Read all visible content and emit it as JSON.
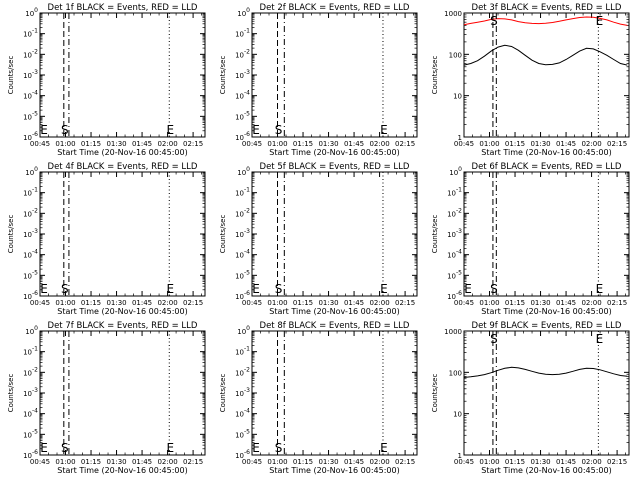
{
  "figure": {
    "panels": [
      {
        "id": "1f",
        "title": "Det 1f BLACK = Events, RED = LLD",
        "ylabel": "Counts/sec",
        "xlabel": "Start Time (20-Nov-16 00:45:00)",
        "y_ticks": [
          "10^0",
          "10^-1",
          "10^-2",
          "10^-3",
          "10^-4",
          "10^-5",
          "10^-6"
        ],
        "y_tick_values": [
          1,
          0.1,
          0.01,
          0.001,
          0.0001,
          1e-05,
          1e-06
        ],
        "x_ticks": [
          "00:45",
          "01:00",
          "01:15",
          "01:30",
          "01:45",
          "02:00",
          "02:15"
        ],
        "x_tick_minutes": [
          0,
          15,
          30,
          45,
          60,
          75,
          90
        ],
        "markers": [
          {
            "label": "E",
            "x_min": -1,
            "style": "none"
          },
          {
            "label": "S",
            "x_min": 14,
            "style": "dashed"
          },
          {
            "label": "",
            "x_min": 17,
            "style": "dashdot"
          },
          {
            "label": "E",
            "x_min": 76,
            "style": "dotted"
          }
        ],
        "series": []
      },
      {
        "id": "2f",
        "title": "Det 2f BLACK = Events, RED = LLD",
        "ylabel": "Counts/sec",
        "xlabel": "Start Time (20-Nov-16 00:45:00)",
        "y_ticks": [
          "10^0",
          "10^-1",
          "10^-2",
          "10^-3",
          "10^-4",
          "10^-5",
          "10^-6"
        ],
        "y_tick_values": [
          1,
          0.1,
          0.01,
          0.001,
          0.0001,
          1e-05,
          1e-06
        ],
        "x_ticks": [
          "00:45",
          "01:00",
          "01:15",
          "01:30",
          "01:45",
          "02:00",
          "02:15"
        ],
        "x_tick_minutes": [
          0,
          15,
          30,
          45,
          60,
          75,
          90
        ],
        "markers": [
          {
            "label": "E",
            "x_min": -1,
            "style": "none"
          },
          {
            "label": "S",
            "x_min": 15,
            "style": "dashed"
          },
          {
            "label": "",
            "x_min": 19,
            "style": "dashdot"
          },
          {
            "label": "E",
            "x_min": 77,
            "style": "dotted"
          }
        ],
        "series": []
      },
      {
        "id": "3f",
        "title": "Det 3f BLACK = Events, RED = LLD",
        "ylabel": "Counts/sec",
        "xlabel": "Start Time (20-Nov-16 00:45:00)",
        "y_ticks": [
          "1",
          "10",
          "100",
          "1000"
        ],
        "y_tick_values": [
          1,
          10,
          100,
          1000
        ],
        "x_ticks": [
          "00:45",
          "01:00",
          "01:15",
          "01:30",
          "01:45",
          "02:00",
          "02:15"
        ],
        "x_tick_minutes": [
          0,
          15,
          30,
          45,
          60,
          75,
          90
        ],
        "markers": [
          {
            "label": "S",
            "x_min": 17,
            "style": "dashed"
          },
          {
            "label": "",
            "x_min": 19,
            "style": "dashdot"
          },
          {
            "label": "E",
            "x_min": 79,
            "style": "dotted"
          }
        ],
        "series": [
          {
            "color": "#ff0000",
            "x": [
              0,
              4,
              8,
              12,
              16,
              20,
              24,
              28,
              32,
              36,
              40,
              44,
              48,
              52,
              56,
              60,
              64,
              68,
              72,
              76,
              80,
              84,
              88,
              92,
              96
            ],
            "y": [
              520,
              560,
              600,
              640,
              700,
              730,
              720,
              680,
              620,
              580,
              560,
              555,
              565,
              590,
              630,
              680,
              730,
              780,
              800,
              790,
              740,
              680,
              600,
              540,
              500
            ]
          },
          {
            "color": "#000000",
            "x": [
              0,
              4,
              8,
              12,
              16,
              20,
              24,
              28,
              32,
              36,
              40,
              44,
              48,
              52,
              56,
              60,
              64,
              68,
              72,
              76,
              80,
              84,
              88,
              92,
              96
            ],
            "y": [
              55,
              60,
              70,
              90,
              120,
              150,
              165,
              155,
              125,
              95,
              72,
              60,
              56,
              57,
              62,
              75,
              95,
              120,
              140,
              135,
              115,
              95,
              75,
              60,
              55
            ]
          }
        ]
      },
      {
        "id": "4f",
        "title": "Det 4f BLACK = Events, RED = LLD",
        "ylabel": "Counts/sec",
        "xlabel": "Start Time (20-Nov-16 00:45:00)",
        "y_ticks": [
          "10^0",
          "10^-1",
          "10^-2",
          "10^-3",
          "10^-4",
          "10^-5",
          "10^-6"
        ],
        "y_tick_values": [
          1,
          0.1,
          0.01,
          0.001,
          0.0001,
          1e-05,
          1e-06
        ],
        "x_ticks": [
          "00:45",
          "01:00",
          "01:15",
          "01:30",
          "01:45",
          "02:00",
          "02:15"
        ],
        "x_tick_minutes": [
          0,
          15,
          30,
          45,
          60,
          75,
          90
        ],
        "markers": [
          {
            "label": "E",
            "x_min": -1,
            "style": "none"
          },
          {
            "label": "S",
            "x_min": 14,
            "style": "dashed"
          },
          {
            "label": "",
            "x_min": 17,
            "style": "dashdot"
          },
          {
            "label": "E",
            "x_min": 76,
            "style": "dotted"
          }
        ],
        "series": []
      },
      {
        "id": "5f",
        "title": "Det 5f BLACK = Events, RED = LLD",
        "ylabel": "Counts/sec",
        "xlabel": "Start Time (20-Nov-16 00:45:00)",
        "y_ticks": [
          "10^0",
          "10^-1",
          "10^-2",
          "10^-3",
          "10^-4",
          "10^-5",
          "10^-6"
        ],
        "y_tick_values": [
          1,
          0.1,
          0.01,
          0.001,
          0.0001,
          1e-05,
          1e-06
        ],
        "x_ticks": [
          "00:45",
          "01:00",
          "01:15",
          "01:30",
          "01:45",
          "02:00",
          "02:15"
        ],
        "x_tick_minutes": [
          0,
          15,
          30,
          45,
          60,
          75,
          90
        ],
        "markers": [
          {
            "label": "E",
            "x_min": -1,
            "style": "none"
          },
          {
            "label": "S",
            "x_min": 15,
            "style": "dashed"
          },
          {
            "label": "",
            "x_min": 19,
            "style": "dashdot"
          },
          {
            "label": "E",
            "x_min": 77,
            "style": "dotted"
          }
        ],
        "series": []
      },
      {
        "id": "6f",
        "title": "Det 6f BLACK = Events, RED = LLD",
        "ylabel": "Counts/sec",
        "xlabel": "Start Time (20-Nov-16 00:45:00)",
        "y_ticks": [
          "10^0",
          "10^-1",
          "10^-2",
          "10^-3",
          "10^-4",
          "10^-5",
          "10^-6"
        ],
        "y_tick_values": [
          1,
          0.1,
          0.01,
          0.001,
          0.0001,
          1e-05,
          1e-06
        ],
        "x_ticks": [
          "00:45",
          "01:00",
          "01:15",
          "01:30",
          "01:45",
          "02:00",
          "02:15"
        ],
        "x_tick_minutes": [
          0,
          15,
          30,
          45,
          60,
          75,
          90
        ],
        "markers": [
          {
            "label": "E",
            "x_min": -1,
            "style": "none"
          },
          {
            "label": "S",
            "x_min": 17,
            "style": "dashed"
          },
          {
            "label": "",
            "x_min": 19,
            "style": "dashdot"
          },
          {
            "label": "E",
            "x_min": 79,
            "style": "dotted"
          }
        ],
        "series": []
      },
      {
        "id": "7f",
        "title": "Det 7f BLACK = Events, RED = LLD",
        "ylabel": "Counts/sec",
        "xlabel": "Start Time (20-Nov-16 00:45:00)",
        "y_ticks": [
          "10^0",
          "10^-1",
          "10^-2",
          "10^-3",
          "10^-4",
          "10^-5",
          "10^-6"
        ],
        "y_tick_values": [
          1,
          0.1,
          0.01,
          0.001,
          0.0001,
          1e-05,
          1e-06
        ],
        "x_ticks": [
          "00:45",
          "01:00",
          "01:15",
          "01:30",
          "01:45",
          "02:00",
          "02:15"
        ],
        "x_tick_minutes": [
          0,
          15,
          30,
          45,
          60,
          75,
          90
        ],
        "markers": [
          {
            "label": "E",
            "x_min": -1,
            "style": "none"
          },
          {
            "label": "S",
            "x_min": 14,
            "style": "dashed"
          },
          {
            "label": "",
            "x_min": 17,
            "style": "dashdot"
          },
          {
            "label": "E",
            "x_min": 76,
            "style": "dotted"
          }
        ],
        "series": []
      },
      {
        "id": "8f",
        "title": "Det 8f BLACK = Events, RED = LLD",
        "ylabel": "Counts/sec",
        "xlabel": "Start Time (20-Nov-16 00:45:00)",
        "y_ticks": [
          "10^0",
          "10^-1",
          "10^-2",
          "10^-3",
          "10^-4",
          "10^-5",
          "10^-6"
        ],
        "y_tick_values": [
          1,
          0.1,
          0.01,
          0.001,
          0.0001,
          1e-05,
          1e-06
        ],
        "x_ticks": [
          "00:45",
          "01:00",
          "01:15",
          "01:30",
          "01:45",
          "02:00",
          "02:15"
        ],
        "x_tick_minutes": [
          0,
          15,
          30,
          45,
          60,
          75,
          90
        ],
        "markers": [
          {
            "label": "E",
            "x_min": -1,
            "style": "none"
          },
          {
            "label": "S",
            "x_min": 15,
            "style": "dashed"
          },
          {
            "label": "",
            "x_min": 19,
            "style": "dashdot"
          },
          {
            "label": "E",
            "x_min": 77,
            "style": "dotted"
          }
        ],
        "series": []
      },
      {
        "id": "9f",
        "title": "Det 9f BLACK = Events, RED = LLD",
        "ylabel": "Counts/sec",
        "xlabel": "Start Time (20-Nov-16 00:45:00)",
        "y_ticks": [
          "1",
          "10",
          "100",
          "1000"
        ],
        "y_tick_values": [
          1,
          10,
          100,
          1000
        ],
        "x_ticks": [
          "00:45",
          "01:00",
          "01:15",
          "01:30",
          "01:45",
          "02:00",
          "02:15"
        ],
        "x_tick_minutes": [
          0,
          15,
          30,
          45,
          60,
          75,
          90
        ],
        "markers": [
          {
            "label": "S",
            "x_min": 17,
            "style": "dashed"
          },
          {
            "label": "",
            "x_min": 19,
            "style": "dashdot"
          },
          {
            "label": "E",
            "x_min": 79,
            "style": "dotted"
          }
        ],
        "series": [
          {
            "color": "#000000",
            "x": [
              0,
              4,
              8,
              12,
              16,
              20,
              24,
              28,
              32,
              36,
              40,
              44,
              48,
              52,
              56,
              60,
              64,
              68,
              72,
              76,
              80,
              84,
              88,
              92,
              96
            ],
            "y": [
              75,
              78,
              82,
              88,
              98,
              112,
              125,
              132,
              128,
              118,
              106,
              96,
              90,
              88,
              90,
              96,
              106,
              118,
              126,
              124,
              115,
              103,
              92,
              84,
              80
            ]
          }
        ]
      }
    ]
  },
  "chart_data": [
    {
      "type": "line",
      "title": "Det 1f BLACK = Events, RED = LLD",
      "xlabel": "Start Time (20-Nov-16 00:45:00)",
      "ylabel": "Counts/sec",
      "yscale": "log",
      "ylim": [
        1e-06,
        1
      ],
      "xlim": [
        0,
        97
      ],
      "series": []
    },
    {
      "type": "line",
      "title": "Det 2f BLACK = Events, RED = LLD",
      "xlabel": "Start Time (20-Nov-16 00:45:00)",
      "ylabel": "Counts/sec",
      "yscale": "log",
      "ylim": [
        1e-06,
        1
      ],
      "xlim": [
        0,
        97
      ],
      "series": []
    },
    {
      "type": "line",
      "title": "Det 3f BLACK = Events, RED = LLD",
      "xlabel": "Start Time (20-Nov-16 00:45:00)",
      "ylabel": "Counts/sec",
      "yscale": "log",
      "ylim": [
        1,
        1000
      ],
      "xlim": [
        0,
        97
      ],
      "series": [
        {
          "color": "#ff0000",
          "x": [
            0,
            4,
            8,
            12,
            16,
            20,
            24,
            28,
            32,
            36,
            40,
            44,
            48,
            52,
            56,
            60,
            64,
            68,
            72,
            76,
            80,
            84,
            88,
            92,
            96
          ],
          "y": [
            520,
            560,
            600,
            640,
            700,
            730,
            720,
            680,
            620,
            580,
            560,
            555,
            565,
            590,
            630,
            680,
            730,
            780,
            800,
            790,
            740,
            680,
            600,
            540,
            500
          ]
        },
        {
          "color": "#000000",
          "x": [
            0,
            4,
            8,
            12,
            16,
            20,
            24,
            28,
            32,
            36,
            40,
            44,
            48,
            52,
            56,
            60,
            64,
            68,
            72,
            76,
            80,
            84,
            88,
            92,
            96
          ],
          "y": [
            55,
            60,
            70,
            90,
            120,
            150,
            165,
            155,
            125,
            95,
            72,
            60,
            56,
            57,
            62,
            75,
            95,
            120,
            140,
            135,
            115,
            95,
            75,
            60,
            55
          ]
        }
      ]
    },
    {
      "type": "line",
      "title": "Det 4f BLACK = Events, RED = LLD",
      "xlabel": "Start Time (20-Nov-16 00:45:00)",
      "ylabel": "Counts/sec",
      "yscale": "log",
      "ylim": [
        1e-06,
        1
      ],
      "xlim": [
        0,
        97
      ],
      "series": []
    },
    {
      "type": "line",
      "title": "Det 5f BLACK = Events, RED = LLD",
      "xlabel": "Start Time (20-Nov-16 00:45:00)",
      "ylabel": "Counts/sec",
      "yscale": "log",
      "ylim": [
        1e-06,
        1
      ],
      "xlim": [
        0,
        97
      ],
      "series": []
    },
    {
      "type": "line",
      "title": "Det 6f BLACK = Events, RED = LLD",
      "xlabel": "Start Time (20-Nov-16 00:45:00)",
      "ylabel": "Counts/sec",
      "yscale": "log",
      "ylim": [
        1e-06,
        1
      ],
      "xlim": [
        0,
        97
      ],
      "series": []
    },
    {
      "type": "line",
      "title": "Det 7f BLACK = Events, RED = LLD",
      "xlabel": "Start Time (20-Nov-16 00:45:00)",
      "ylabel": "Counts/sec",
      "yscale": "log",
      "ylim": [
        1e-06,
        1
      ],
      "xlim": [
        0,
        97
      ],
      "series": []
    },
    {
      "type": "line",
      "title": "Det 8f BLACK = Events, RED = LLD",
      "xlabel": "Start Time (20-Nov-16 00:45:00)",
      "ylabel": "Counts/sec",
      "yscale": "log",
      "ylim": [
        1e-06,
        1
      ],
      "xlim": [
        0,
        97
      ],
      "series": []
    },
    {
      "type": "line",
      "title": "Det 9f BLACK = Events, RED = LLD",
      "xlabel": "Start Time (20-Nov-16 00:45:00)",
      "ylabel": "Counts/sec",
      "yscale": "log",
      "ylim": [
        1,
        1000
      ],
      "xlim": [
        0,
        97
      ],
      "series": [
        {
          "color": "#000000",
          "x": [
            0,
            4,
            8,
            12,
            16,
            20,
            24,
            28,
            32,
            36,
            40,
            44,
            48,
            52,
            56,
            60,
            64,
            68,
            72,
            76,
            80,
            84,
            88,
            92,
            96
          ],
          "y": [
            75,
            78,
            82,
            88,
            98,
            112,
            125,
            132,
            128,
            118,
            106,
            96,
            90,
            88,
            90,
            96,
            106,
            118,
            126,
            124,
            115,
            103,
            92,
            84,
            80
          ]
        }
      ]
    }
  ]
}
